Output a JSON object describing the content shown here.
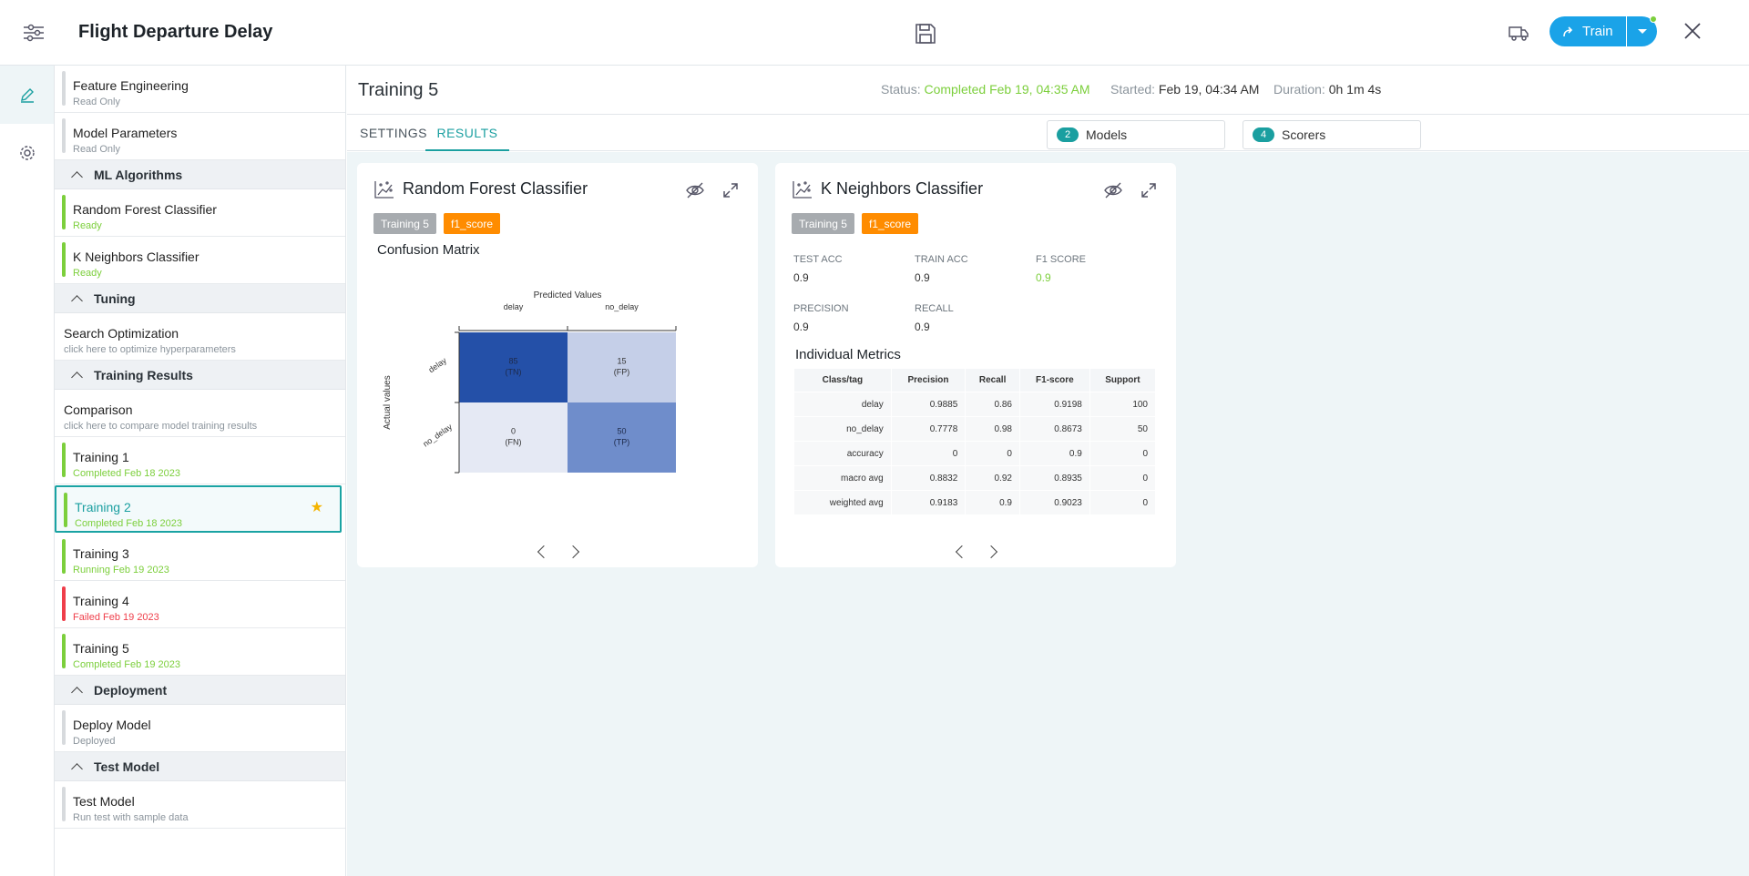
{
  "app": {
    "title": "Flight Departure Delay",
    "train_label": "Train"
  },
  "sidebar": {
    "top_steps": [
      {
        "name": "Feature Engineering",
        "sub": "Read Only"
      },
      {
        "name": "Model Parameters",
        "sub": "Read Only"
      }
    ],
    "sections": {
      "ml_algorithms": "ML Algorithms",
      "tuning": "Tuning",
      "training_results": "Training Results",
      "deployment": "Deployment",
      "test_model": "Test Model"
    },
    "algorithms": [
      {
        "name": "Random Forest Classifier",
        "sub": "Ready"
      },
      {
        "name": "K Neighbors Classifier",
        "sub": "Ready"
      }
    ],
    "search_optimization": {
      "name": "Search Optimization",
      "sub": "click here to optimize hyperparameters"
    },
    "comparison": {
      "name": "Comparison",
      "sub": "click here to compare model training results"
    },
    "trainings": [
      {
        "name": "Training 1",
        "sub": "Completed Feb 18 2023"
      },
      {
        "name": "Training 2",
        "sub": "Completed Feb 18 2023"
      },
      {
        "name": "Training 3",
        "sub": "Running Feb 19 2023"
      },
      {
        "name": "Training 4",
        "sub": "Failed Feb 19 2023"
      },
      {
        "name": "Training 5",
        "sub": "Completed Feb 19 2023"
      }
    ],
    "deploy_model": {
      "name": "Deploy Model",
      "sub": "Deployed"
    },
    "test_model": {
      "name": "Test Model",
      "sub": "Run test with sample data"
    }
  },
  "main": {
    "page_title": "Training 5",
    "status_label": "Status:",
    "status_value": "Completed Feb 19, 04:35 AM",
    "started_label": "Started:",
    "started_value": "Feb 19, 04:34 AM",
    "duration_label": "Duration:",
    "duration_value": "0h 1m 4s",
    "tabs": [
      {
        "label": "SETTINGS"
      },
      {
        "label": "RESULTS"
      }
    ],
    "models_count": "2",
    "models_label": "Models",
    "scorers_count": "4",
    "scorers_label": "Scorers"
  },
  "cards": {
    "rf": {
      "title": "Random Forest Classifier",
      "tag_training": "Training 5",
      "tag_score": "f1_score",
      "subtitle": "Confusion Matrix"
    },
    "knn": {
      "title": "K Neighbors Classifier",
      "tag_training": "Training 5",
      "tag_score": "f1_score",
      "metrics": [
        {
          "label": "TEST ACC",
          "value": "0.9"
        },
        {
          "label": "TRAIN ACC",
          "value": "0.9"
        },
        {
          "label": "F1 SCORE",
          "value": "0.9"
        },
        {
          "label": "PRECISION",
          "value": "0.9"
        },
        {
          "label": "RECALL",
          "value": "0.9"
        }
      ],
      "subtitle": "Individual Metrics",
      "table": {
        "headers": [
          "Class/tag",
          "Precision",
          "Recall",
          "F1-score",
          "Support"
        ],
        "rows": [
          [
            "delay",
            "0.9885",
            "0.86",
            "0.9198",
            "100"
          ],
          [
            "no_delay",
            "0.7778",
            "0.98",
            "0.8673",
            "50"
          ],
          [
            "accuracy",
            "0",
            "0",
            "0.9",
            "0"
          ],
          [
            "macro avg",
            "0.8832",
            "0.92",
            "0.8935",
            "0"
          ],
          [
            "weighted avg",
            "0.9183",
            "0.9",
            "0.9023",
            "0"
          ]
        ]
      }
    }
  },
  "chart_data": {
    "type": "heatmap",
    "title": "Confusion Matrix",
    "xlabel": "Predicted Values",
    "ylabel": "Actual values",
    "x_categories": [
      "delay",
      "no_delay"
    ],
    "y_categories": [
      "delay",
      "no_delay"
    ],
    "cells": [
      {
        "row": "delay",
        "col": "delay",
        "value": 85,
        "label": "(TN)",
        "color": "#2450a8"
      },
      {
        "row": "delay",
        "col": "no_delay",
        "value": 15,
        "label": "(FP)",
        "color": "#c5cfe8"
      },
      {
        "row": "no_delay",
        "col": "delay",
        "value": 0,
        "label": "(FN)",
        "color": "#e5e9f4"
      },
      {
        "row": "no_delay",
        "col": "no_delay",
        "value": 50,
        "label": "(TP)",
        "color": "#6f8dcb"
      }
    ]
  }
}
